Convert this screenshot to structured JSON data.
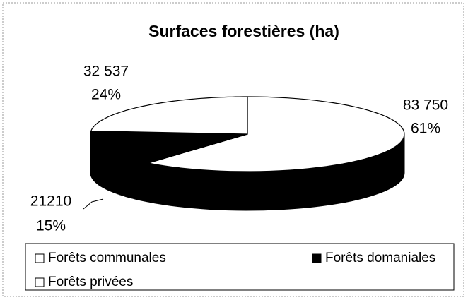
{
  "chart_data": {
    "type": "pie3d",
    "title": "Surfaces forestières (ha)",
    "categories": [
      "Forêts communales",
      "Forêts domaniales",
      "Forêts privées"
    ],
    "values": [
      83750,
      21210,
      32537
    ],
    "value_labels": [
      "83 750",
      "21210",
      "32 537"
    ],
    "percents": [
      61,
      15,
      24
    ],
    "percent_labels": [
      "61%",
      "15%",
      "24%"
    ],
    "colors": [
      "#ffffff",
      "#000000",
      "#ffffff"
    ],
    "legend": "bottom"
  }
}
